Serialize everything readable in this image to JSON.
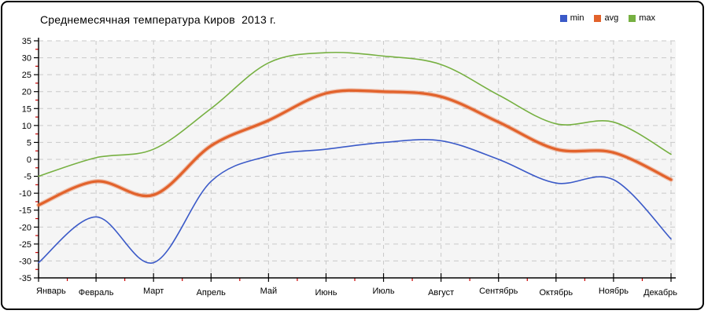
{
  "title": "Среднемесячная температура Киров  2013 г.",
  "legend": {
    "position": "top-right",
    "items": [
      {
        "label": "min",
        "color": "#3b5ac8"
      },
      {
        "label": "avg",
        "color": "#e2622b"
      },
      {
        "label": "max",
        "color": "#76b041"
      }
    ]
  },
  "chart_data": {
    "type": "line",
    "title": "Среднемесячная температура Киров  2013 г.",
    "categories": [
      "Январь",
      "Февраль",
      "Март",
      "Апрель",
      "Май",
      "Июнь",
      "Июль",
      "Август",
      "Сентябрь",
      "Октябрь",
      "Ноябрь",
      "Декабрь"
    ],
    "series": [
      {
        "name": "min",
        "color": "#3b5ac8",
        "line_width": 1.6,
        "values": [
          -30.5,
          -17,
          -30.5,
          -6.5,
          1,
          3,
          5,
          5.5,
          0,
          -7,
          -6,
          -23.5
        ]
      },
      {
        "name": "avg",
        "color": "#e2622b",
        "line_width": 3.2,
        "values": [
          -13.5,
          -6.5,
          -10.5,
          4,
          11.5,
          19.5,
          20,
          18.5,
          11,
          3,
          2,
          -6
        ]
      },
      {
        "name": "max",
        "color": "#76b041",
        "line_width": 1.6,
        "values": [
          -5,
          0.5,
          3,
          15,
          28.5,
          31.5,
          30.5,
          28,
          19,
          10.5,
          11,
          1.5
        ]
      }
    ],
    "xlabel": "",
    "ylabel": "",
    "ylim": [
      -35,
      35
    ],
    "ytick_step": 5,
    "y_tick_labels": [
      "35",
      "30",
      "25",
      "20",
      "15",
      "10",
      "5",
      "0",
      "-5",
      "-10",
      "-15",
      "-20",
      "-25",
      "-30",
      "-35"
    ],
    "grid": true,
    "grid_style": "dashed",
    "smooth": true,
    "legend_position": "top-right"
  },
  "style_colors": {
    "plot_background": "#f5f5f5",
    "gridline": "#c9c9c9",
    "axis": "#000000",
    "minor_tick": "#cc0000"
  }
}
